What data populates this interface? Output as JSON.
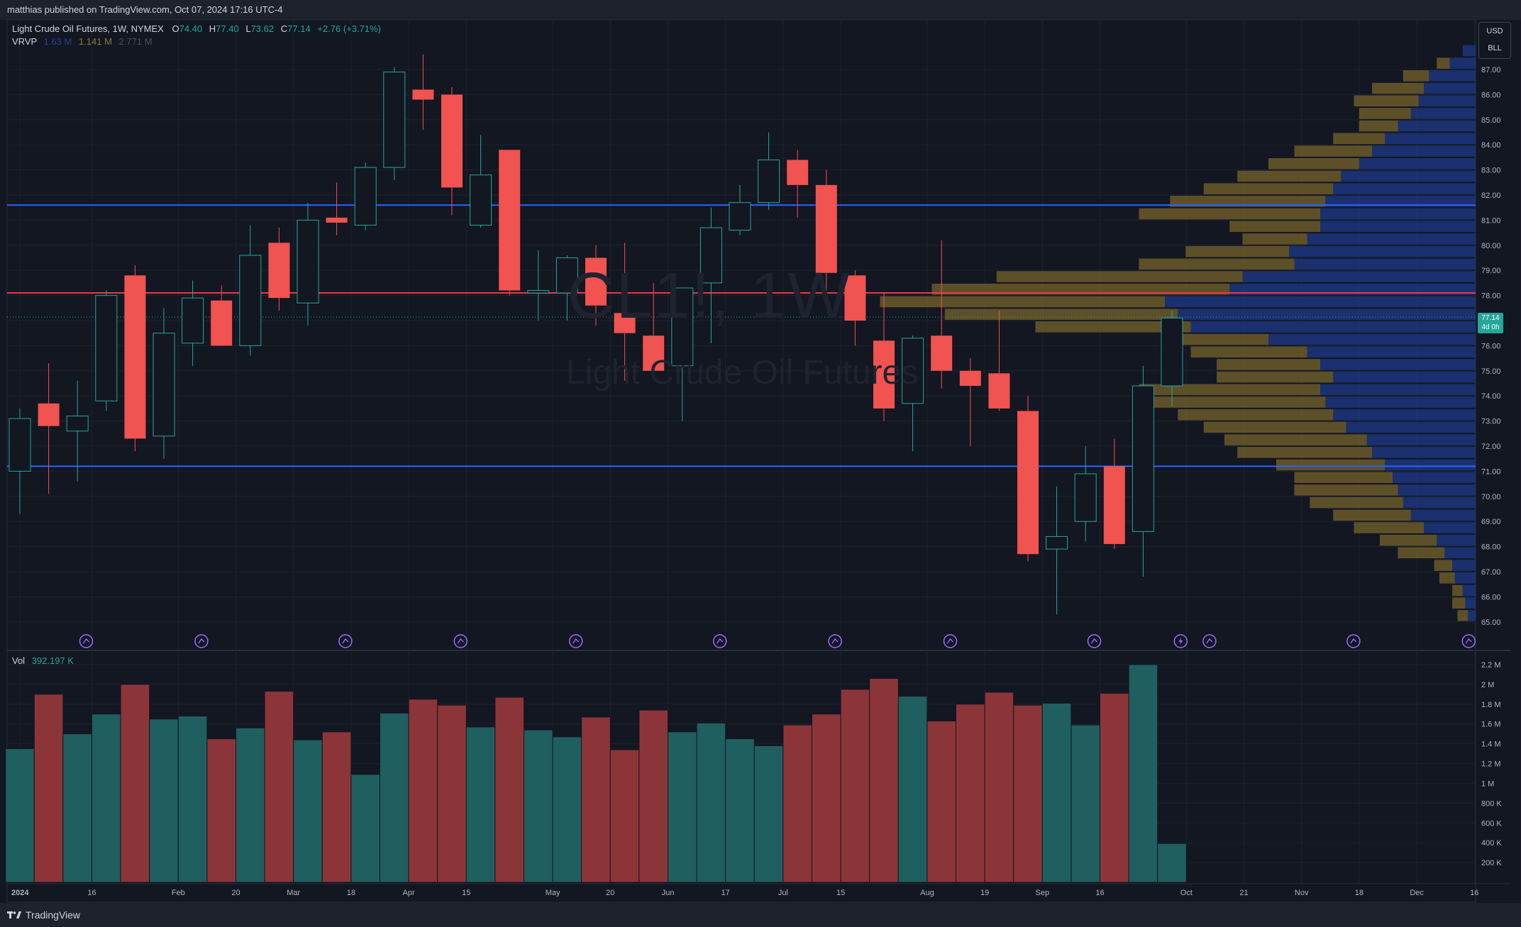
{
  "header": {
    "published": "matthias published on TradingView.com, Oct 07, 2024 17:16 UTC-4"
  },
  "legend": {
    "symbol": "Light Crude Oil Futures, 1W, NYMEX",
    "o_label": "O",
    "o": "74.40",
    "h_label": "H",
    "h": "77.40",
    "l_label": "L",
    "l": "73.62",
    "c_label": "C",
    "c": "77.14",
    "change": "+2.76 (+3.71%)",
    "vrvp_label": "VRVP",
    "vrvp_up": "1.63 M",
    "vrvp_down": "1.141 M",
    "vrvp_total": "2.771 M",
    "vol_label": "Vol",
    "vol_value": "392.197 K"
  },
  "watermark": {
    "symbol": "CL1!, 1W",
    "name": "Light Crude Oil Futures"
  },
  "units": {
    "currency": "USD",
    "unit": "BLL"
  },
  "last_price": {
    "price": "77.14",
    "countdown": "4d 0h"
  },
  "footer": {
    "brand": "TradingView"
  },
  "colors": {
    "up": "#26a69a",
    "down": "#f05350",
    "up_vol": "#1f5f5f",
    "down_vol": "#8c3539",
    "hline_blue": "#2962ff",
    "hline_red": "#f23645",
    "vp_up": "#1e3a8a",
    "vp_down": "#6b5a2a"
  },
  "chart_data": {
    "type": "candlestick",
    "price_axis": {
      "ylim": [
        64.5,
        88
      ],
      "ticks": [
        "65.00",
        "66.00",
        "67.00",
        "68.00",
        "69.00",
        "70.00",
        "71.00",
        "72.00",
        "73.00",
        "74.00",
        "75.00",
        "76.00",
        "77.00",
        "78.00",
        "79.00",
        "80.00",
        "81.00",
        "82.00",
        "83.00",
        "84.00",
        "85.00",
        "86.00",
        "87.00"
      ]
    },
    "volume_axis": {
      "ylim": [
        0,
        2300000
      ],
      "ticks": [
        "200 K",
        "400 K",
        "600 K",
        "800 K",
        "1 M",
        "1.2 M",
        "1.4 M",
        "1.6 M",
        "1.8 M",
        "2 M",
        "2.2 M"
      ]
    },
    "time_axis": {
      "labels": [
        {
          "i": 0,
          "t": "2024",
          "bold": true
        },
        {
          "i": 2.5,
          "t": "16"
        },
        {
          "i": 5.5,
          "t": "Feb"
        },
        {
          "i": 7.5,
          "t": "20"
        },
        {
          "i": 9.5,
          "t": "Mar"
        },
        {
          "i": 11.5,
          "t": "18"
        },
        {
          "i": 13.5,
          "t": "Apr"
        },
        {
          "i": 15.5,
          "t": "15"
        },
        {
          "i": 18.5,
          "t": "May"
        },
        {
          "i": 20.5,
          "t": "20"
        },
        {
          "i": 22.5,
          "t": "Jun"
        },
        {
          "i": 24.5,
          "t": "17"
        },
        {
          "i": 26.5,
          "t": "Jul"
        },
        {
          "i": 28.5,
          "t": "15"
        },
        {
          "i": 31.5,
          "t": "Aug"
        },
        {
          "i": 33.5,
          "t": "19"
        },
        {
          "i": 35.5,
          "t": "Sep"
        },
        {
          "i": 37.5,
          "t": "16"
        },
        {
          "i": 40.5,
          "t": "Oct"
        },
        {
          "i": 42.5,
          "t": "21"
        },
        {
          "i": 44.5,
          "t": "Nov"
        },
        {
          "i": 46.5,
          "t": "18"
        },
        {
          "i": 48.5,
          "t": "Dec"
        },
        {
          "i": 50.5,
          "t": "16"
        }
      ]
    },
    "candles": [
      {
        "o": 71.0,
        "h": 73.5,
        "l": 69.3,
        "c": 73.1
      },
      {
        "o": 73.7,
        "h": 75.3,
        "l": 70.1,
        "c": 72.8
      },
      {
        "o": 72.6,
        "h": 74.6,
        "l": 70.6,
        "c": 73.2
      },
      {
        "o": 73.8,
        "h": 78.2,
        "l": 73.4,
        "c": 78.0
      },
      {
        "o": 78.8,
        "h": 79.2,
        "l": 71.8,
        "c": 72.3
      },
      {
        "o": 72.4,
        "h": 77.5,
        "l": 71.5,
        "c": 76.5
      },
      {
        "o": 76.1,
        "h": 78.6,
        "l": 75.2,
        "c": 77.9
      },
      {
        "o": 77.8,
        "h": 78.4,
        "l": 76.1,
        "c": 76.0
      },
      {
        "o": 76.0,
        "h": 80.8,
        "l": 75.6,
        "c": 79.6
      },
      {
        "o": 80.1,
        "h": 80.7,
        "l": 77.4,
        "c": 77.9
      },
      {
        "o": 77.7,
        "h": 81.7,
        "l": 76.8,
        "c": 81.0
      },
      {
        "o": 81.1,
        "h": 82.5,
        "l": 80.4,
        "c": 80.9
      },
      {
        "o": 80.8,
        "h": 83.3,
        "l": 80.6,
        "c": 83.1
      },
      {
        "o": 83.1,
        "h": 87.1,
        "l": 82.6,
        "c": 86.9
      },
      {
        "o": 86.2,
        "h": 87.6,
        "l": 84.6,
        "c": 85.8
      },
      {
        "o": 86.0,
        "h": 86.3,
        "l": 81.2,
        "c": 82.3
      },
      {
        "o": 80.8,
        "h": 84.4,
        "l": 80.7,
        "c": 82.8
      },
      {
        "o": 83.8,
        "h": 83.8,
        "l": 78.0,
        "c": 78.2
      },
      {
        "o": 78.1,
        "h": 79.8,
        "l": 77.0,
        "c": 78.2
      },
      {
        "o": 78.1,
        "h": 79.6,
        "l": 77.0,
        "c": 79.5
      },
      {
        "o": 79.5,
        "h": 80.0,
        "l": 76.8,
        "c": 77.6
      },
      {
        "o": 77.3,
        "h": 80.1,
        "l": 74.6,
        "c": 76.5
      },
      {
        "o": 76.4,
        "h": 78.5,
        "l": 75.0,
        "c": 75.0
      },
      {
        "o": 75.2,
        "h": 78.3,
        "l": 73.0,
        "c": 78.3
      },
      {
        "o": 78.5,
        "h": 81.5,
        "l": 76.1,
        "c": 80.7
      },
      {
        "o": 80.6,
        "h": 82.4,
        "l": 80.4,
        "c": 81.7
      },
      {
        "o": 81.7,
        "h": 84.5,
        "l": 81.4,
        "c": 83.4
      },
      {
        "o": 83.4,
        "h": 83.8,
        "l": 81.1,
        "c": 82.4
      },
      {
        "o": 82.4,
        "h": 83.0,
        "l": 77.8,
        "c": 78.9
      },
      {
        "o": 78.8,
        "h": 79.0,
        "l": 76.0,
        "c": 77.0
      },
      {
        "o": 76.2,
        "h": 78.1,
        "l": 73.0,
        "c": 73.5
      },
      {
        "o": 73.7,
        "h": 76.4,
        "l": 71.8,
        "c": 76.3
      },
      {
        "o": 76.4,
        "h": 80.2,
        "l": 74.3,
        "c": 75.0
      },
      {
        "o": 75.0,
        "h": 75.5,
        "l": 72.0,
        "c": 74.4
      },
      {
        "o": 74.9,
        "h": 77.4,
        "l": 73.4,
        "c": 73.5
      },
      {
        "o": 73.4,
        "h": 74.0,
        "l": 67.4,
        "c": 67.7
      },
      {
        "o": 67.9,
        "h": 70.4,
        "l": 65.3,
        "c": 68.4
      },
      {
        "o": 69.0,
        "h": 72.0,
        "l": 68.2,
        "c": 70.9
      },
      {
        "o": 71.2,
        "h": 72.3,
        "l": 67.9,
        "c": 68.1
      },
      {
        "o": 68.6,
        "h": 75.2,
        "l": 66.8,
        "c": 74.4
      },
      {
        "o": 74.4,
        "h": 77.4,
        "l": 73.6,
        "c": 77.1
      }
    ],
    "volume": [
      1350000,
      1900000,
      1500000,
      1700000,
      2000000,
      1650000,
      1680000,
      1450000,
      1560000,
      1930000,
      1440000,
      1520000,
      1090000,
      1710000,
      1850000,
      1790000,
      1570000,
      1870000,
      1540000,
      1470000,
      1670000,
      1340000,
      1740000,
      1520000,
      1610000,
      1450000,
      1380000,
      1590000,
      1700000,
      1950000,
      2060000,
      1880000,
      1630000,
      1800000,
      1920000,
      1790000,
      1810000,
      1590000,
      1910000,
      2200000,
      392197
    ],
    "volume_profile": [
      {
        "p": 65.25,
        "up": 3000,
        "down": 4000
      },
      {
        "p": 65.75,
        "up": 4000,
        "down": 5000
      },
      {
        "p": 66.25,
        "up": 5000,
        "down": 4000
      },
      {
        "p": 66.75,
        "up": 8000,
        "down": 6000
      },
      {
        "p": 67.25,
        "up": 9000,
        "down": 7000
      },
      {
        "p": 67.75,
        "up": 12000,
        "down": 18000
      },
      {
        "p": 68.25,
        "up": 15000,
        "down": 22000
      },
      {
        "p": 68.75,
        "up": 20000,
        "down": 27000
      },
      {
        "p": 69.25,
        "up": 25000,
        "down": 30000
      },
      {
        "p": 69.75,
        "up": 28000,
        "down": 36000
      },
      {
        "p": 70.25,
        "up": 30000,
        "down": 40000
      },
      {
        "p": 70.75,
        "up": 32000,
        "down": 38000
      },
      {
        "p": 71.25,
        "up": 35000,
        "down": 42000
      },
      {
        "p": 71.75,
        "up": 40000,
        "down": 52000
      },
      {
        "p": 72.25,
        "up": 42000,
        "down": 55000
      },
      {
        "p": 72.75,
        "up": 50000,
        "down": 55000
      },
      {
        "p": 73.25,
        "up": 55000,
        "down": 60000
      },
      {
        "p": 73.75,
        "up": 58000,
        "down": 70000
      },
      {
        "p": 74.25,
        "up": 60000,
        "down": 70000
      },
      {
        "p": 74.75,
        "up": 55000,
        "down": 45000
      },
      {
        "p": 75.25,
        "up": 60000,
        "down": 40000
      },
      {
        "p": 75.75,
        "up": 65000,
        "down": 45000
      },
      {
        "p": 76.25,
        "up": 80000,
        "down": 40000
      },
      {
        "p": 76.75,
        "up": 110000,
        "down": 60000
      },
      {
        "p": 77.25,
        "up": 115000,
        "down": 90000
      },
      {
        "p": 77.75,
        "up": 120000,
        "down": 110000
      },
      {
        "p": 78.25,
        "up": 95000,
        "down": 115000
      },
      {
        "p": 78.75,
        "up": 90000,
        "down": 95000
      },
      {
        "p": 79.25,
        "up": 70000,
        "down": 60000
      },
      {
        "p": 79.75,
        "up": 72000,
        "down": 40000
      },
      {
        "p": 80.25,
        "up": 65000,
        "down": 25000
      },
      {
        "p": 80.75,
        "up": 60000,
        "down": 35000
      },
      {
        "p": 81.25,
        "up": 60000,
        "down": 70000
      },
      {
        "p": 81.75,
        "up": 58000,
        "down": 60000
      },
      {
        "p": 82.25,
        "up": 55000,
        "down": 50000
      },
      {
        "p": 82.75,
        "up": 52000,
        "down": 40000
      },
      {
        "p": 83.25,
        "up": 45000,
        "down": 35000
      },
      {
        "p": 83.75,
        "up": 40000,
        "down": 30000
      },
      {
        "p": 84.25,
        "up": 35000,
        "down": 20000
      },
      {
        "p": 84.75,
        "up": 30000,
        "down": 15000
      },
      {
        "p": 85.25,
        "up": 25000,
        "down": 20000
      },
      {
        "p": 85.75,
        "up": 22000,
        "down": 25000
      },
      {
        "p": 86.25,
        "up": 20000,
        "down": 20000
      },
      {
        "p": 86.75,
        "up": 18000,
        "down": 10000
      },
      {
        "p": 87.25,
        "up": 10000,
        "down": 5000
      },
      {
        "p": 87.75,
        "up": 5000,
        "down": 0
      }
    ],
    "horizontal_lines": [
      {
        "price": 81.6,
        "color": "blue"
      },
      {
        "price": 78.1,
        "color": "red"
      },
      {
        "price": 71.2,
        "color": "blue"
      }
    ],
    "events": [
      2.5,
      6.5,
      11.5,
      15.5,
      19.5,
      24.5,
      28.5,
      32.5,
      37.5,
      41.5,
      46.5,
      50.5
    ],
    "event_flash": [
      40.5
    ]
  }
}
